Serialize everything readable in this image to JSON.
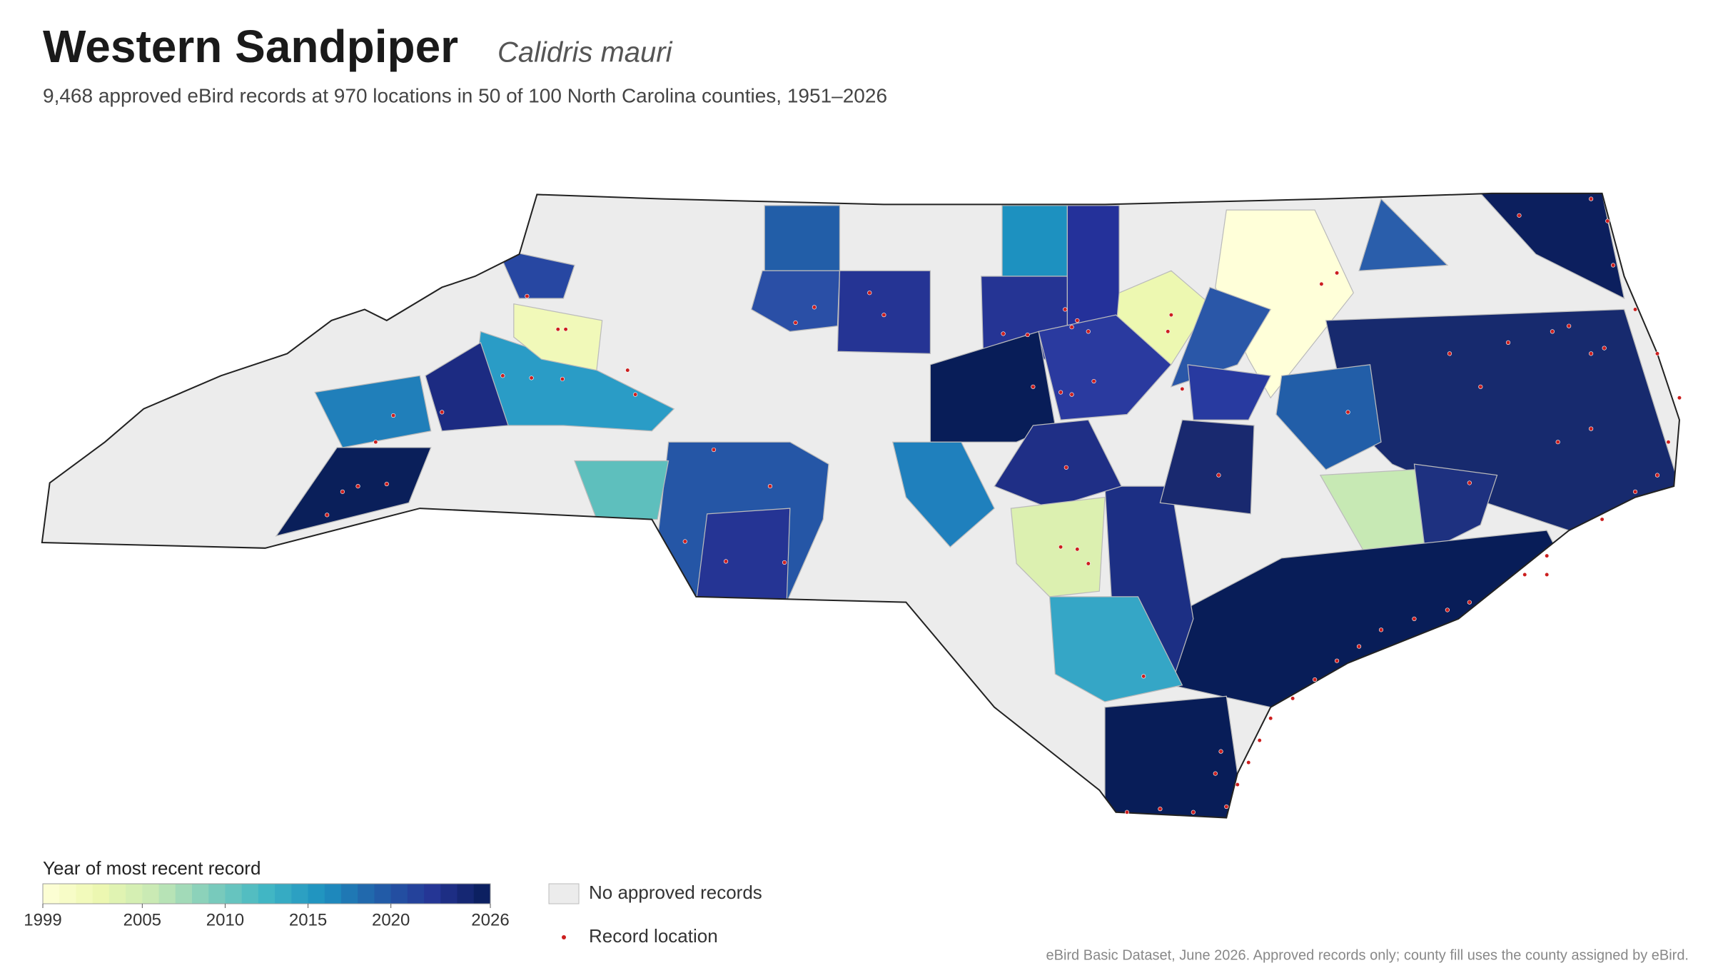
{
  "header": {
    "title": "Western Sandpiper",
    "scientific_name": "Calidris mauri",
    "subtitle": "9,468 approved eBird records at 970 locations in 50 of 100 North Carolina counties, 1951–2026"
  },
  "legend": {
    "title": "Year of most recent record",
    "range": [
      1999,
      2026
    ],
    "ticks": [
      1999,
      2005,
      2010,
      2015,
      2020,
      2026
    ],
    "colormap": [
      "#ffffd9",
      "#edf8b1",
      "#c7e9b4",
      "#7fcdbb",
      "#41b6c4",
      "#1d91c0",
      "#225ea8",
      "#253494",
      "#081d58"
    ],
    "no_data": {
      "label": "No approved records",
      "color": "#ececec"
    },
    "points": {
      "label": "Record location",
      "color": "#cc1f1f"
    }
  },
  "footnote": "eBird Basic Dataset, June 2026. Approved records only; county fill uses the county assigned by eBird."
}
